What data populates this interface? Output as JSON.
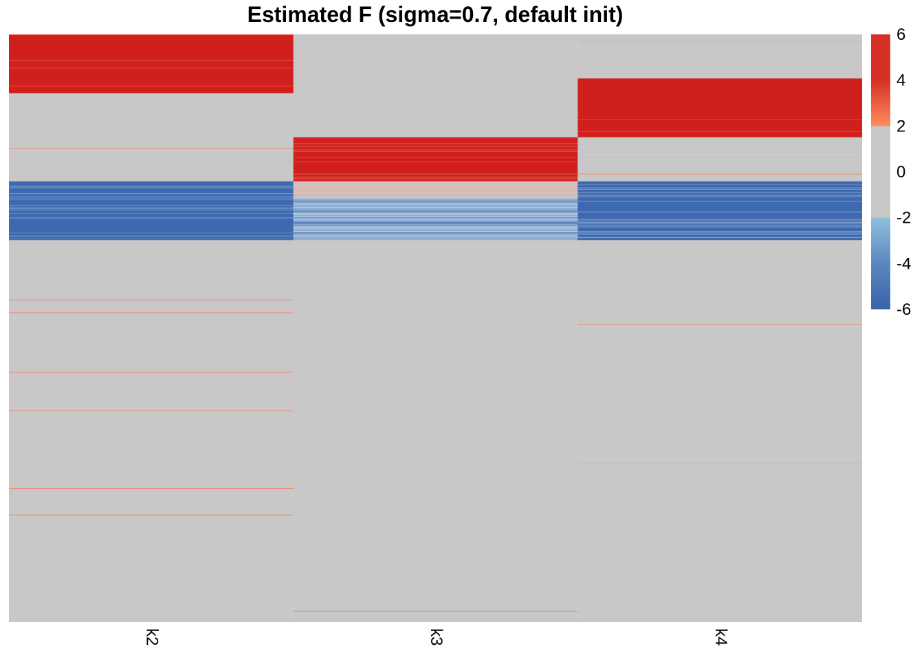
{
  "chart_data": {
    "type": "heatmap",
    "title": "Estimated F (sigma=0.7, default init)",
    "columns": [
      "k2",
      "k3",
      "k4"
    ],
    "n_rows": 1000,
    "zero_color": "#C8C8C8",
    "legend": {
      "position": "right",
      "ticks": [
        "6",
        "4",
        "2",
        "0",
        "-2",
        "-4",
        "-6"
      ],
      "tick_values": [
        6,
        4,
        2,
        0,
        -2,
        -4,
        -6
      ],
      "range": [
        -6,
        6
      ],
      "color_stops": [
        {
          "value": 6,
          "color": "#D73027"
        },
        {
          "value": 4,
          "color": "#D73027"
        },
        {
          "value": 2,
          "color": "#FC8D59"
        },
        {
          "value": 2,
          "color": "#C8C8C8"
        },
        {
          "value": -2,
          "color": "#C8C8C8"
        },
        {
          "value": -2,
          "color": "#91BFDB"
        },
        {
          "value": -4,
          "color": "#5B87C0"
        },
        {
          "value": -6,
          "color": "#3A63A8"
        }
      ]
    },
    "blocks": [
      {
        "column": "k2",
        "row_start": 0,
        "row_end": 100,
        "value": 6,
        "pattern": "dense-positive"
      },
      {
        "column": "k2",
        "row_start": 250,
        "row_end": 350,
        "value": -6,
        "pattern": "dense-negative"
      },
      {
        "column": "k3",
        "row_start": 175,
        "row_end": 250,
        "value": 6,
        "pattern": "dense-positive"
      },
      {
        "column": "k3",
        "row_start": 250,
        "row_end": 278,
        "value": 1,
        "pattern": "faint-positive"
      },
      {
        "column": "k3",
        "row_start": 278,
        "row_end": 350,
        "value": -4,
        "pattern": "mixed-negative"
      },
      {
        "column": "k4",
        "row_start": 75,
        "row_end": 175,
        "value": 6,
        "pattern": "dense-positive"
      },
      {
        "column": "k4",
        "row_start": 250,
        "row_end": 350,
        "value": -6,
        "pattern": "dense-negative"
      }
    ],
    "sparse_rows": [
      {
        "column": "k2",
        "row": 193,
        "value": 2.5
      },
      {
        "column": "k2",
        "row": 451,
        "value": 2.5
      },
      {
        "column": "k2",
        "row": 473,
        "value": 2.5
      },
      {
        "column": "k2",
        "row": 574,
        "value": 2.5
      },
      {
        "column": "k2",
        "row": 640,
        "value": 2.5
      },
      {
        "column": "k2",
        "row": 772,
        "value": 2.5
      },
      {
        "column": "k2",
        "row": 817,
        "value": 2.5
      },
      {
        "column": "k3",
        "row": 981,
        "value": 2.5
      },
      {
        "column": "k4",
        "row": 12,
        "value": -2.5
      },
      {
        "column": "k4",
        "row": 33,
        "value": -2.5
      },
      {
        "column": "k4",
        "row": 186,
        "value": -2.5
      },
      {
        "column": "k4",
        "row": 209,
        "value": -2.5
      },
      {
        "column": "k4",
        "row": 237,
        "value": 2.5
      },
      {
        "column": "k4",
        "row": 399,
        "value": -2.5
      },
      {
        "column": "k4",
        "row": 493,
        "value": 2.5
      },
      {
        "column": "k4",
        "row": 730,
        "value": -2.5
      }
    ]
  }
}
